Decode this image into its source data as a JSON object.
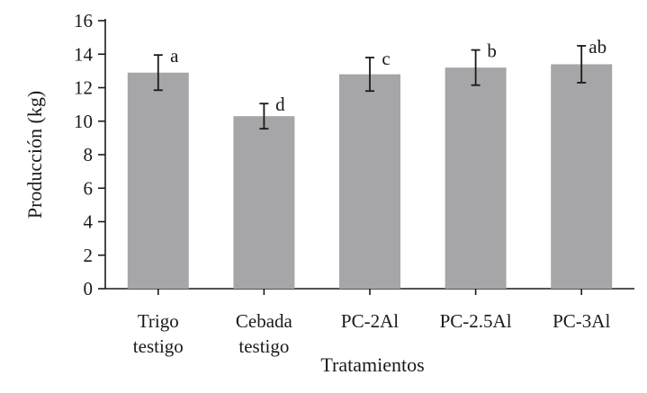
{
  "chart_data": {
    "type": "bar",
    "categories": [
      [
        "Trigo",
        "testigo"
      ],
      [
        "Cebada",
        "testigo"
      ],
      [
        "PC-2Al"
      ],
      [
        "PC-2.5Al"
      ],
      [
        "PC-3Al"
      ]
    ],
    "values": [
      12.9,
      10.3,
      12.8,
      13.2,
      13.4
    ],
    "error": [
      1.05,
      0.75,
      1.0,
      1.05,
      1.1
    ],
    "significance_labels": [
      "a",
      "d",
      "c",
      "b",
      "ab"
    ],
    "xlabel": "Tratamientos",
    "ylabel": "Producción (kg)",
    "ylim": [
      0,
      16
    ],
    "yticks": [
      0,
      2,
      4,
      6,
      8,
      10,
      12,
      14,
      16
    ],
    "grid": false,
    "colors": {
      "bar": "#a6a6a8",
      "axis": "#1a1a1a"
    }
  }
}
